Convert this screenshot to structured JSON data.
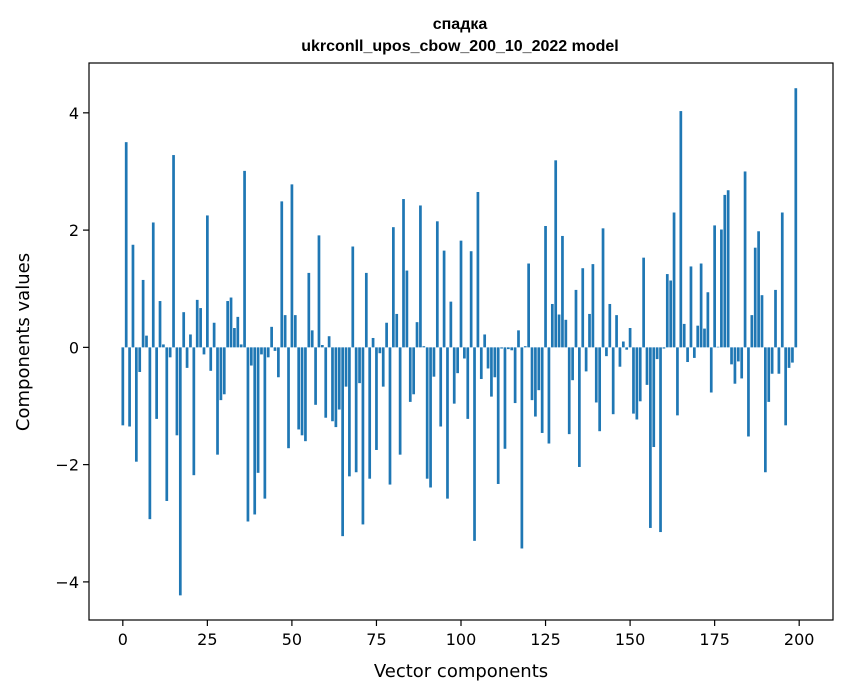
{
  "chart_data": {
    "type": "bar",
    "title": "спадка",
    "subtitle": "ukrconll_upos_cbow_200_10_2022 model",
    "xlabel": "Vector components",
    "ylabel": "Components values",
    "xlim": [
      -10,
      210
    ],
    "ylim": [
      -4.65,
      4.85
    ],
    "grid": false,
    "x_ticks": [
      0,
      25,
      50,
      75,
      100,
      125,
      150,
      175,
      200
    ],
    "y_ticks": [
      -4,
      -2,
      0,
      2,
      4
    ],
    "x_tick_labels": [
      "0",
      "25",
      "50",
      "75",
      "100",
      "125",
      "150",
      "175",
      "200"
    ],
    "y_tick_labels": [
      "−4",
      "−2",
      "0",
      "2",
      "4"
    ],
    "bar_color": "#1f77b4",
    "x": [
      0,
      1,
      2,
      3,
      4,
      5,
      6,
      7,
      8,
      9,
      10,
      11,
      12,
      13,
      14,
      15,
      16,
      17,
      18,
      19,
      20,
      21,
      22,
      23,
      24,
      25,
      26,
      27,
      28,
      29,
      30,
      31,
      32,
      33,
      34,
      35,
      36,
      37,
      38,
      39,
      40,
      41,
      42,
      43,
      44,
      45,
      46,
      47,
      48,
      49,
      50,
      51,
      52,
      53,
      54,
      55,
      56,
      57,
      58,
      59,
      60,
      61,
      62,
      63,
      64,
      65,
      66,
      67,
      68,
      69,
      70,
      71,
      72,
      73,
      74,
      75,
      76,
      77,
      78,
      79,
      80,
      81,
      82,
      83,
      84,
      85,
      86,
      87,
      88,
      89,
      90,
      91,
      92,
      93,
      94,
      95,
      96,
      97,
      98,
      99,
      100,
      101,
      102,
      103,
      104,
      105,
      106,
      107,
      108,
      109,
      110,
      111,
      112,
      113,
      114,
      115,
      116,
      117,
      118,
      119,
      120,
      121,
      122,
      123,
      124,
      125,
      126,
      127,
      128,
      129,
      130,
      131,
      132,
      133,
      134,
      135,
      136,
      137,
      138,
      139,
      140,
      141,
      142,
      143,
      144,
      145,
      146,
      147,
      148,
      149,
      150,
      151,
      152,
      153,
      154,
      155,
      156,
      157,
      158,
      159,
      160,
      161,
      162,
      163,
      164,
      165,
      166,
      167,
      168,
      169,
      170,
      171,
      172,
      173,
      174,
      175,
      176,
      177,
      178,
      179,
      180,
      181,
      182,
      183,
      184,
      185,
      186,
      187,
      188,
      189,
      190,
      191,
      192,
      193,
      194,
      195,
      196,
      197,
      198,
      199
    ],
    "values": [
      -1.33,
      3.5,
      -1.35,
      1.75,
      -1.95,
      -0.42,
      1.15,
      0.2,
      -2.93,
      2.13,
      -1.22,
      0.79,
      0.05,
      -2.62,
      -0.17,
      3.28,
      -1.5,
      -4.23,
      0.6,
      -0.35,
      0.22,
      -2.18,
      0.81,
      0.67,
      -0.12,
      2.25,
      -0.4,
      0.42,
      -1.83,
      -0.9,
      -0.8,
      0.79,
      0.85,
      0.33,
      0.52,
      0.05,
      3.01,
      -2.97,
      -0.31,
      -2.85,
      -2.14,
      -0.12,
      -2.58,
      -0.17,
      0.35,
      -0.06,
      -0.51,
      2.49,
      0.55,
      -1.72,
      2.78,
      0.55,
      -1.4,
      -1.5,
      -1.6,
      1.27,
      0.29,
      -0.98,
      1.91,
      0.04,
      -1.2,
      0.19,
      -1.26,
      -1.36,
      -1.06,
      -3.22,
      -0.67,
      -2.2,
      1.72,
      -2.13,
      -0.61,
      -3.02,
      1.27,
      -2.24,
      0.16,
      -1.75,
      -0.1,
      -0.67,
      0.42,
      -2.34,
      2.05,
      0.57,
      -1.83,
      2.53,
      1.31,
      -0.93,
      -0.8,
      0.43,
      2.42,
      0.02,
      -2.24,
      -2.39,
      -0.5,
      2.15,
      -1.35,
      1.65,
      -2.58,
      0.78,
      -0.96,
      -0.44,
      1.82,
      -0.19,
      -1.22,
      1.64,
      -3.3,
      2.65,
      -0.54,
      0.22,
      -0.36,
      -0.84,
      -0.51,
      -2.33,
      -0.02,
      -1.73,
      -0.03,
      -0.05,
      -0.95,
      0.29,
      -3.43,
      0.02,
      1.43,
      -0.9,
      -1.18,
      -0.73,
      -1.46,
      2.07,
      -1.64,
      0.74,
      3.19,
      0.56,
      1.9,
      0.47,
      -1.48,
      -0.56,
      0.98,
      -2.04,
      1.35,
      -0.41,
      0.57,
      1.42,
      -0.94,
      -1.43,
      2.03,
      -0.15,
      0.74,
      -1.14,
      0.55,
      -0.33,
      0.1,
      -0.04,
      0.33,
      -1.13,
      -1.23,
      -0.92,
      1.53,
      -0.64,
      -3.08,
      -1.7,
      -0.2,
      -3.15,
      -0.02,
      1.25,
      1.14,
      2.3,
      -1.16,
      4.03,
      0.4,
      -0.25,
      1.38,
      -0.18,
      0.37,
      1.43,
      0.32,
      0.94,
      -0.77,
      2.08,
      0.01,
      2.01,
      2.6,
      2.68,
      -0.29,
      -0.62,
      -0.24,
      -0.53,
      3.0,
      -1.52,
      0.55,
      1.7,
      1.98,
      0.89,
      -2.13,
      -0.93,
      -0.45,
      0.98,
      -0.45,
      2.3,
      -1.33,
      -0.35,
      -0.26,
      4.42
    ]
  }
}
